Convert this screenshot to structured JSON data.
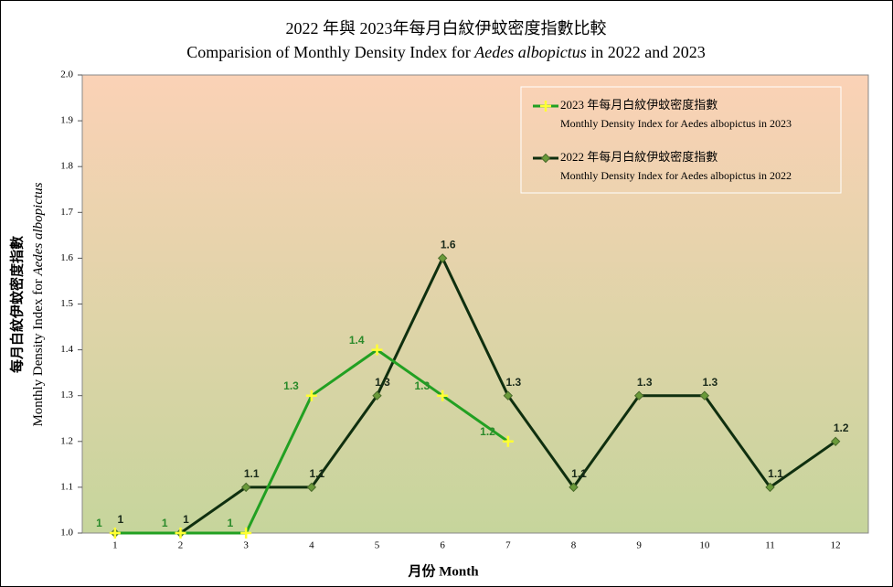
{
  "chart_data": {
    "type": "line",
    "title_line1": "2022 年與 2023年每月白紋伊蚊密度指數比較",
    "title_line2": [
      "Comparision of Monthly Density Index for ",
      "Aedes albopictus",
      " in 2022 and 2023"
    ],
    "y_label_line1": "每月白紋伊蚊密度指數",
    "y_label_line2": [
      "Monthly Density Index for ",
      "Aedes albopictus"
    ],
    "x_label": "月份 Month",
    "categories": [
      "1",
      "2",
      "3",
      "4",
      "5",
      "6",
      "7",
      "8",
      "9",
      "10",
      "11",
      "12"
    ],
    "series": [
      {
        "name": "2023 年每月白紋伊蚊密度指數",
        "name_en": "Monthly Density Index for Aedes albopictus in 2023",
        "color": "#22a022",
        "marker_color": "#ffff33",
        "values": [
          1,
          1,
          1,
          1.3,
          1.4,
          1.3,
          1.2,
          null,
          null,
          null,
          null,
          null
        ]
      },
      {
        "name": "2022 年每月白紋伊蚊密度指數",
        "name_en": "Monthly Density Index for Aedes albopictus in 2022",
        "color": "#0f2f0f",
        "marker_color": "#6a9a3a",
        "values": [
          1,
          1,
          1.1,
          1.1,
          1.3,
          1.6,
          1.3,
          1.1,
          1.3,
          1.3,
          1.1,
          1.2
        ]
      }
    ],
    "ylim": [
      1,
      2
    ],
    "yticks": [
      {
        "value": 1,
        "label": "1.0"
      },
      1.1,
      1.2,
      1.3,
      1.4,
      1.5,
      1.6,
      1.7,
      1.8,
      1.9,
      {
        "value": 2,
        "label": "2.0"
      }
    ],
    "legend": "upper right"
  }
}
